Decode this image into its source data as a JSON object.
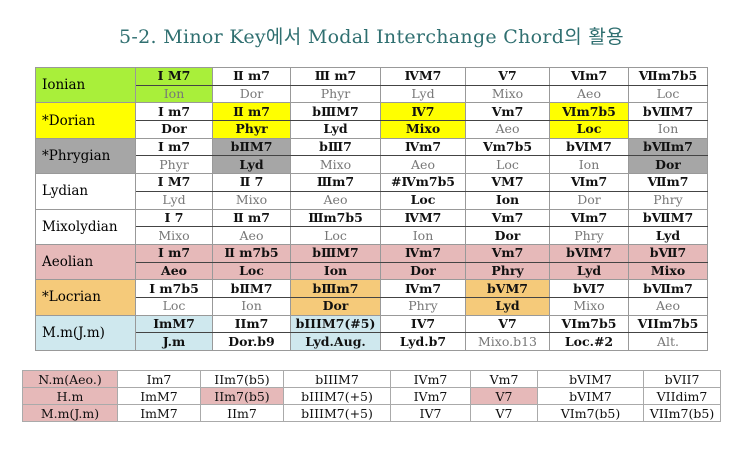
{
  "title": "5-2. Minor Key에서 Modal Interchange Chord의 활용",
  "colors": {
    "ionian": "#a9ef3a",
    "dorian": "#ffff00",
    "phrygian": "#a6a6a6",
    "aeolian": "#e6b9b9",
    "locrian": "#f5ca7a",
    "melodic_minor": "#cfe8ee",
    "compare_label": "#e6b9b9"
  },
  "modes": [
    {
      "name": "Ionian",
      "color_key": "ionian",
      "label_highlight": true,
      "row_highlight": false,
      "highlight": [
        0
      ],
      "chords": [
        "Ⅰ M7",
        "Ⅱ m7",
        "Ⅲ m7",
        "ⅣM7",
        "Ⅴ7",
        "Ⅵm7",
        "Ⅶm7b5"
      ],
      "chord_bold": [
        1,
        1,
        1,
        1,
        1,
        1,
        1
      ],
      "scales": [
        "Ion",
        "Dor",
        "Phyr",
        "Lyd",
        "Mixo",
        "Aeo",
        "Loc"
      ],
      "scale_bold": [
        0,
        0,
        0,
        0,
        0,
        0,
        0
      ]
    },
    {
      "name": "*Dorian",
      "color_key": "dorian",
      "label_highlight": true,
      "row_highlight": false,
      "highlight": [
        1,
        3,
        5
      ],
      "chords": [
        "Ⅰ m7",
        "Ⅱ m7",
        "bⅢM7",
        "Ⅳ7",
        "Ⅴm7",
        "Ⅵm7b5",
        "bⅦM7"
      ],
      "chord_bold": [
        1,
        1,
        1,
        1,
        1,
        1,
        1
      ],
      "scales": [
        "Dor",
        "Phyr",
        "Lyd",
        "Mixo",
        "Aeo",
        "Loc",
        "Ion"
      ],
      "scale_bold": [
        1,
        1,
        1,
        1,
        0,
        1,
        0
      ]
    },
    {
      "name": "*Phrygian",
      "color_key": "phrygian",
      "label_highlight": true,
      "row_highlight": false,
      "highlight": [
        1,
        6
      ],
      "chords": [
        "Ⅰ m7",
        "bⅡM7",
        "bⅢ7",
        "Ⅳm7",
        "Ⅴm7b5",
        "bⅥM7",
        "bⅦm7"
      ],
      "chord_bold": [
        1,
        1,
        1,
        1,
        1,
        1,
        1
      ],
      "scales": [
        "Phyr",
        "Lyd",
        "Mixo",
        "Aeo",
        "Loc",
        "Ion",
        "Dor"
      ],
      "scale_bold": [
        0,
        1,
        0,
        0,
        0,
        0,
        1
      ]
    },
    {
      "name": "Lydian",
      "color_key": "",
      "label_highlight": false,
      "row_highlight": false,
      "highlight": [],
      "chords": [
        "Ⅰ M7",
        "Ⅱ 7",
        "Ⅲm7",
        "#Ⅳm7b5",
        "ⅤM7",
        "Ⅵm7",
        "Ⅶm7"
      ],
      "chord_bold": [
        1,
        1,
        1,
        1,
        1,
        1,
        1
      ],
      "scales": [
        "Lyd",
        "Mixo",
        "Aeo",
        "Loc",
        "Ion",
        "Dor",
        "Phry"
      ],
      "scale_bold": [
        0,
        0,
        0,
        1,
        1,
        0,
        0
      ]
    },
    {
      "name": "Mixolydian",
      "color_key": "",
      "label_highlight": false,
      "row_highlight": false,
      "highlight": [],
      "chords": [
        "Ⅰ 7",
        "Ⅱ m7",
        "Ⅲm7b5",
        "ⅣM7",
        "Ⅴm7",
        "Ⅵm7",
        "bⅦM7"
      ],
      "chord_bold": [
        1,
        1,
        1,
        1,
        1,
        1,
        1
      ],
      "scales": [
        "Mixo",
        "Aeo",
        "Loc",
        "Ion",
        "Dor",
        "Phry",
        "Lyd"
      ],
      "scale_bold": [
        0,
        0,
        0,
        0,
        1,
        0,
        1
      ]
    },
    {
      "name": "Aeolian",
      "color_key": "aeolian",
      "label_highlight": true,
      "row_highlight": true,
      "highlight": [],
      "chords": [
        "Ⅰ m7",
        "Ⅱ m7b5",
        "bⅢM7",
        "Ⅳm7",
        "Ⅴm7",
        "bⅥM7",
        "bⅦ7"
      ],
      "chord_bold": [
        1,
        1,
        1,
        1,
        1,
        1,
        1
      ],
      "scales": [
        "Aeo",
        "Loc",
        "Ion",
        "Dor",
        "Phry",
        "Lyd",
        "Mixo"
      ],
      "scale_bold": [
        1,
        1,
        1,
        1,
        1,
        1,
        1
      ]
    },
    {
      "name": "*Locrian",
      "color_key": "locrian",
      "label_highlight": true,
      "row_highlight": false,
      "highlight": [
        2,
        4
      ],
      "chords": [
        "Ⅰ m7b5",
        "bⅡM7",
        "bⅢm7",
        "Ⅳm7",
        "bⅤM7",
        "bⅥ7",
        "bⅦm7"
      ],
      "chord_bold": [
        1,
        1,
        1,
        1,
        1,
        1,
        1
      ],
      "scales": [
        "Loc",
        "Ion",
        "Dor",
        "Phry",
        "Lyd",
        "Mixo",
        "Aeo"
      ],
      "scale_bold": [
        0,
        0,
        1,
        0,
        1,
        0,
        0
      ]
    },
    {
      "name": "M.m(J.m)",
      "color_key": "melodic_minor",
      "label_highlight": true,
      "row_highlight": false,
      "highlight": [
        0,
        2
      ],
      "chords": [
        "ImM7",
        "IIm7",
        "bIIIM7(#5)",
        "IV7",
        "V7",
        "VIm7b5",
        "VIIm7b5"
      ],
      "chord_bold": [
        1,
        1,
        1,
        1,
        1,
        1,
        1
      ],
      "scales": [
        "J.m",
        "Dor.b9",
        "Lyd.Aug.",
        "Lyd.b7",
        "Mixo.b13",
        "Loc.#2",
        "Alt."
      ],
      "scale_bold": [
        1,
        1,
        1,
        1,
        0,
        1,
        0
      ]
    }
  ],
  "compare": [
    {
      "label": "N.m(Aeo.)",
      "chords": [
        "Im7",
        "IIm7(b5)",
        "bIIIM7",
        "IVm7",
        "Vm7",
        "bVIM7",
        "bVII7"
      ],
      "highlight": []
    },
    {
      "label": "H.m",
      "chords": [
        "ImM7",
        "IIm7(b5)",
        "bIIIM7(+5)",
        "IVm7",
        "V7",
        "bVIM7",
        "VIIdim7"
      ],
      "highlight": [
        1,
        4
      ]
    },
    {
      "label": "M.m(J.m)",
      "chords": [
        "ImM7",
        "IIm7",
        "bIIIM7(+5)",
        "IV7",
        "V7",
        "VIm7(b5)",
        "VIIm7(b5)"
      ],
      "highlight": []
    }
  ]
}
